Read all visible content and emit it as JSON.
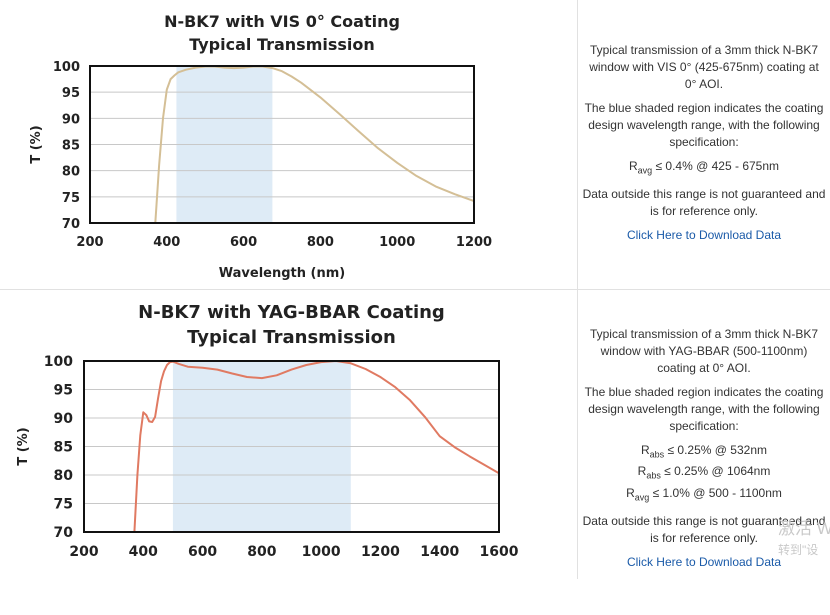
{
  "panels": [
    {
      "description": "Typical transmission of a 3mm thick N-BK7 window with VIS 0° (425-675nm) coating at 0° AOI.",
      "shaded_text": "The blue shaded region indicates the coating design wavelength range, with the following specification:",
      "specs": [
        {
          "sym": "R",
          "sub": "avg",
          "text": " ≤ 0.4% @ 425 - 675nm"
        }
      ],
      "disclaimer": "Data outside this range is not guaranteed and is for reference only.",
      "link": "Click Here to Download Data"
    },
    {
      "description": "Typical transmission of a 3mm thick N-BK7 window with YAG-BBAR (500-1100nm) coating at 0° AOI.",
      "shaded_text": "The blue shaded region indicates the coating design wavelength range, with the following specification:",
      "specs": [
        {
          "sym": "R",
          "sub": "abs",
          "text": " ≤ 0.25% @ 532nm"
        },
        {
          "sym": "R",
          "sub": "abs",
          "text": " ≤ 0.25% @ 1064nm"
        },
        {
          "sym": "R",
          "sub": "avg",
          "text": " ≤ 1.0% @ 500 - 1100nm"
        }
      ],
      "disclaimer": "Data outside this range is not guaranteed and is for reference only.",
      "link": "Click Here to Download Data"
    }
  ],
  "watermark": {
    "line1": "激活 W",
    "line2": "转到\"设"
  },
  "chart_data": [
    {
      "type": "line",
      "title": "N-BK7 with VIS 0° Coating",
      "subtitle": "Typical Transmission",
      "xlabel": "Wavelength (nm)",
      "ylabel": "T (%)",
      "xlim": [
        200,
        1200
      ],
      "ylim": [
        70,
        100
      ],
      "xticks": [
        200,
        400,
        600,
        800,
        1000,
        1200
      ],
      "yticks": [
        70,
        75,
        80,
        85,
        90,
        95,
        100
      ],
      "grid": true,
      "shaded_range": [
        425,
        675
      ],
      "line_color": "#d4bf96",
      "shade_color": "#deebf6",
      "series": [
        {
          "x": [
            370,
            380,
            390,
            400,
            410,
            420,
            430,
            450,
            475,
            500,
            525,
            550,
            575,
            600,
            625,
            650,
            675,
            700,
            725,
            750,
            775,
            800,
            850,
            900,
            950,
            1000,
            1050,
            1100,
            1150,
            1200
          ],
          "y": [
            70,
            81,
            90,
            95.5,
            97.5,
            98.2,
            98.8,
            99.3,
            99.7,
            99.9,
            99.9,
            99.7,
            99.6,
            99.7,
            99.9,
            99.9,
            99.6,
            99.0,
            98.0,
            96.8,
            95.4,
            94.0,
            90.8,
            87.5,
            84.3,
            81.5,
            79.0,
            77.0,
            75.5,
            74.2
          ]
        }
      ]
    },
    {
      "type": "line",
      "title": "N-BK7 with YAG-BBAR Coating",
      "subtitle": "Typical Transmission",
      "xlabel": "Wavelength (nm)",
      "ylabel": "T (%)",
      "xlim": [
        200,
        1600
      ],
      "ylim": [
        70,
        100
      ],
      "xticks": [
        200,
        400,
        600,
        800,
        1000,
        1200,
        1400,
        1600
      ],
      "yticks": [
        70,
        75,
        80,
        85,
        90,
        95,
        100
      ],
      "grid": true,
      "shaded_range": [
        500,
        1100
      ],
      "line_color": "#e07a62",
      "shade_color": "#deebf6",
      "series": [
        {
          "x": [
            370,
            380,
            390,
            400,
            410,
            420,
            430,
            440,
            450,
            460,
            470,
            480,
            490,
            500,
            520,
            550,
            600,
            650,
            700,
            750,
            800,
            850,
            900,
            950,
            1000,
            1050,
            1100,
            1150,
            1200,
            1250,
            1300,
            1350,
            1400,
            1450,
            1500,
            1550,
            1600
          ],
          "y": [
            70,
            80,
            87,
            91,
            90.5,
            89.4,
            89.3,
            90.2,
            93.5,
            96.5,
            98.2,
            99.3,
            99.8,
            99.9,
            99.5,
            99.0,
            98.8,
            98.5,
            97.8,
            97.2,
            97.0,
            97.5,
            98.5,
            99.3,
            99.8,
            100,
            99.6,
            98.6,
            97.2,
            95.4,
            93.1,
            90.2,
            86.8,
            84.9,
            83.3,
            81.8,
            80.3
          ]
        }
      ]
    }
  ]
}
